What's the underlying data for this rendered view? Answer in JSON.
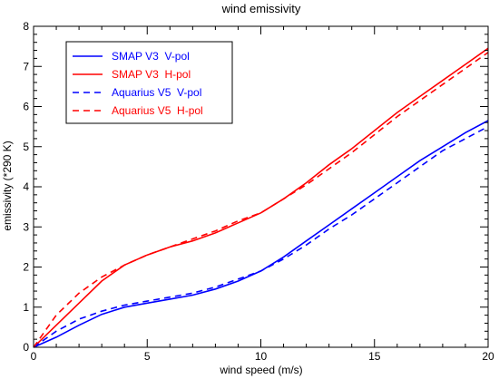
{
  "chart_data": {
    "type": "line",
    "title": "wind emissivity",
    "xlabel": "wind speed (m/s)",
    "ylabel": "emissivity (*290 K)",
    "xlim": [
      0,
      20
    ],
    "ylim": [
      0,
      8
    ],
    "xticks": [
      0,
      5,
      10,
      15,
      20
    ],
    "yticks": [
      0,
      1,
      2,
      3,
      4,
      5,
      6,
      7,
      8
    ],
    "grid": false,
    "legend_position": "top-left",
    "series": [
      {
        "name": "SMAP V3  V-pol",
        "color": "#0000ff",
        "dash": "solid",
        "x": [
          0,
          1,
          2,
          3,
          4,
          5,
          6,
          7,
          8,
          9,
          10,
          11,
          12,
          13,
          14,
          15,
          16,
          17,
          18,
          19,
          20
        ],
        "y": [
          0.0,
          0.25,
          0.55,
          0.82,
          1.0,
          1.1,
          1.2,
          1.3,
          1.45,
          1.65,
          1.9,
          2.25,
          2.65,
          3.05,
          3.45,
          3.85,
          4.25,
          4.65,
          5.0,
          5.35,
          5.65
        ]
      },
      {
        "name": "SMAP V3  H-pol",
        "color": "#ff0000",
        "dash": "solid",
        "x": [
          0,
          1,
          2,
          3,
          4,
          5,
          6,
          7,
          8,
          9,
          10,
          11,
          12,
          13,
          14,
          15,
          16,
          17,
          18,
          19,
          20
        ],
        "y": [
          0.0,
          0.55,
          1.1,
          1.65,
          2.05,
          2.3,
          2.5,
          2.65,
          2.85,
          3.1,
          3.35,
          3.7,
          4.1,
          4.55,
          4.95,
          5.4,
          5.85,
          6.25,
          6.65,
          7.05,
          7.45
        ]
      },
      {
        "name": "Aquarius V5  V-pol",
        "color": "#0000ff",
        "dash": "dashed",
        "x": [
          0,
          1,
          2,
          3,
          4,
          5,
          6,
          7,
          8,
          9,
          10,
          11,
          12,
          13,
          14,
          15,
          16,
          17,
          18,
          19,
          20
        ],
        "y": [
          0.0,
          0.4,
          0.7,
          0.9,
          1.05,
          1.15,
          1.25,
          1.35,
          1.5,
          1.7,
          1.9,
          2.2,
          2.55,
          2.95,
          3.3,
          3.7,
          4.1,
          4.5,
          4.9,
          5.2,
          5.5
        ]
      },
      {
        "name": "Aquarius V5  H-pol",
        "color": "#ff0000",
        "dash": "dashed",
        "x": [
          0,
          1,
          2,
          3,
          4,
          5,
          6,
          7,
          8,
          9,
          10,
          11,
          12,
          13,
          14,
          15,
          16,
          17,
          18,
          19,
          20
        ],
        "y": [
          0.0,
          0.8,
          1.35,
          1.75,
          2.05,
          2.3,
          2.5,
          2.7,
          2.9,
          3.15,
          3.35,
          3.7,
          4.05,
          4.45,
          4.85,
          5.3,
          5.75,
          6.15,
          6.55,
          6.95,
          7.35
        ]
      }
    ]
  }
}
